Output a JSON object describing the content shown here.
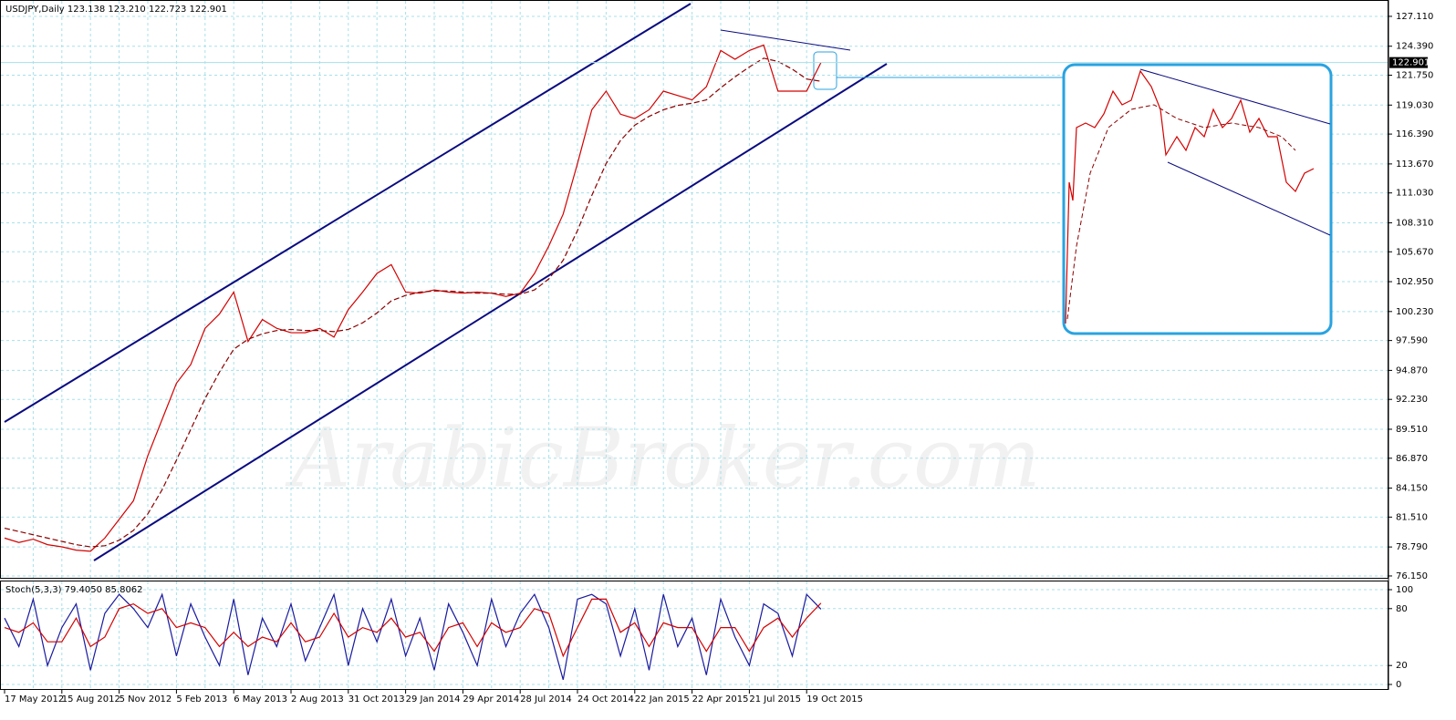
{
  "chart_data": [
    {
      "type": "line",
      "title": "USDJPY,Daily  123.138 123.210 122.723 122.901",
      "watermark": "ArabicBroker.com",
      "last_price": 122.901,
      "categories": [
        "17 May 2012",
        null,
        null,
        null,
        "15 Aug 2012",
        null,
        null,
        null,
        "5 Nov 2012",
        null,
        null,
        null,
        "5 Feb 2013",
        null,
        null,
        null,
        "6 May 2013",
        null,
        null,
        null,
        "2 Aug 2013",
        null,
        null,
        null,
        "31 Oct 2013",
        null,
        null,
        null,
        "29 Jan 2014",
        null,
        null,
        null,
        "29 Apr 2014",
        null,
        null,
        null,
        "28 Jul 2014",
        null,
        null,
        null,
        "24 Oct 2014",
        null,
        null,
        null,
        "22 Jan 2015",
        null,
        null,
        null,
        "22 Apr 2015",
        null,
        null,
        null,
        "21 Jul 2015",
        null,
        null,
        null,
        "19 Oct 2015",
        null
      ],
      "series": [
        {
          "color": "#d40000",
          "dashed": false,
          "values": [
            79.6,
            79.2,
            79.5,
            79.0,
            78.8,
            78.5,
            78.4,
            79.6,
            81.3,
            83.0,
            87.1,
            90.4,
            93.7,
            95.4,
            98.7,
            100.0,
            102.0,
            97.5,
            99.5,
            98.7,
            98.3,
            98.3,
            98.7,
            97.9,
            100.4,
            102.0,
            103.7,
            104.5,
            102.0,
            101.9,
            102.2,
            102.0,
            101.9,
            102.0,
            101.9,
            101.6,
            101.9,
            103.7,
            106.2,
            109.1,
            113.7,
            118.6,
            120.3,
            118.2,
            117.8,
            118.6,
            120.3,
            119.9,
            119.5,
            120.7,
            124.0,
            123.2,
            124.0,
            124.5,
            120.3,
            120.3,
            120.3,
            122.9
          ]
        },
        {
          "color": "#8b0000",
          "dashed": true,
          "values": [
            80.5,
            80.2,
            79.9,
            79.6,
            79.3,
            79.0,
            78.8,
            78.9,
            79.4,
            80.3,
            81.8,
            84.0,
            86.7,
            89.5,
            92.3,
            94.7,
            96.8,
            97.7,
            98.2,
            98.5,
            98.6,
            98.5,
            98.5,
            98.4,
            98.6,
            99.2,
            100.1,
            101.2,
            101.7,
            102.0,
            102.1,
            102.1,
            102.0,
            101.9,
            101.9,
            101.8,
            101.8,
            102.2,
            103.2,
            104.9,
            107.6,
            110.8,
            113.7,
            115.8,
            117.2,
            118.0,
            118.6,
            119.0,
            119.2,
            119.5,
            120.6,
            121.6,
            122.5,
            123.3,
            123.0,
            122.3,
            121.4,
            121.2
          ]
        }
      ],
      "ylim": [
        75.98,
        128.35
      ],
      "yticks": [
        {
          "value": 127.11,
          "label": "127.110"
        },
        {
          "value": 124.39,
          "label": "124.390"
        },
        {
          "value": 121.75,
          "label": "121.750"
        },
        {
          "value": 119.03,
          "label": "119.030"
        },
        {
          "value": 116.39,
          "label": "116.390"
        },
        {
          "value": 113.67,
          "label": "113.670"
        },
        {
          "value": 111.03,
          "label": "111.030"
        },
        {
          "value": 108.31,
          "label": "108.310"
        },
        {
          "value": 105.67,
          "label": "105.670"
        },
        {
          "value": 102.95,
          "label": "102.950"
        },
        {
          "value": 100.23,
          "label": "100.230"
        },
        {
          "value": 97.59,
          "label": "97.590"
        },
        {
          "value": 94.87,
          "label": "94.870"
        },
        {
          "value": 92.23,
          "label": "92.230"
        },
        {
          "value": 89.51,
          "label": "89.510"
        },
        {
          "value": 86.87,
          "label": "86.870"
        },
        {
          "value": 84.15,
          "label": "84.150"
        },
        {
          "value": 81.51,
          "label": "81.510"
        },
        {
          "value": 78.79,
          "label": "78.790"
        },
        {
          "value": 76.15,
          "label": "76.150"
        }
      ],
      "grid": true
    },
    {
      "type": "line",
      "title": "Stoch(5,3,3) 79.4050 85.8062",
      "series": [
        {
          "color": "#1a1aa0",
          "dashed": false,
          "values": [
            70,
            40,
            90,
            20,
            60,
            85,
            15,
            75,
            95,
            80,
            60,
            95,
            30,
            85,
            50,
            20,
            90,
            10,
            70,
            40,
            85,
            25,
            60,
            95,
            20,
            80,
            45,
            90,
            30,
            70,
            15,
            85,
            55,
            20,
            90,
            40,
            75,
            95,
            60,
            5,
            90,
            95,
            85,
            30,
            80,
            15,
            95,
            40,
            70,
            10,
            90,
            50,
            20,
            85,
            75,
            30,
            95,
            79.405
          ]
        },
        {
          "color": "#d40000",
          "dashed": false,
          "values": [
            60,
            55,
            65,
            45,
            45,
            70,
            40,
            50,
            80,
            85,
            75,
            80,
            60,
            65,
            60,
            40,
            55,
            40,
            50,
            45,
            65,
            45,
            50,
            75,
            50,
            60,
            55,
            70,
            50,
            55,
            35,
            60,
            65,
            40,
            65,
            55,
            60,
            80,
            75,
            30,
            60,
            90,
            90,
            55,
            65,
            40,
            65,
            60,
            60,
            35,
            60,
            60,
            35,
            60,
            70,
            50,
            70,
            85.8062
          ]
        }
      ],
      "ylim": [
        0,
        100
      ],
      "yticks": [
        100,
        80,
        20,
        0
      ],
      "grid": true
    }
  ]
}
